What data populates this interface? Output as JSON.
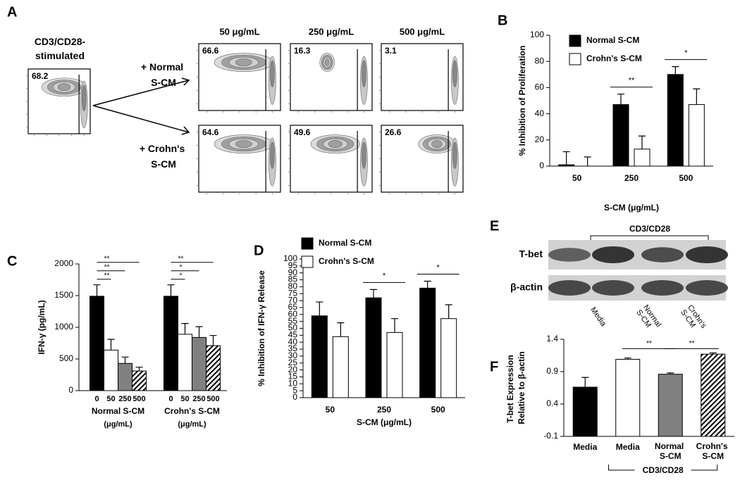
{
  "flow": {
    "label": "A",
    "control_title": "CD3/CD28-stimulated",
    "control_value": 68.2,
    "columns": [
      "50 μg/mL",
      "250 μg/mL",
      "500 μg/mL"
    ],
    "rows": [
      {
        "name": "+ Normal S-CM",
        "values": [
          66.6,
          16.3,
          3.1
        ]
      },
      {
        "name": "+ Crohn's S-CM",
        "values": [
          64.6,
          49.6,
          26.6
        ]
      }
    ]
  },
  "blot": {
    "label": "E",
    "treatment": "CD3/CD28",
    "bands": [
      "T-bet",
      "β-actin"
    ],
    "lanes": [
      null,
      "Media",
      "Normal S-CM",
      "Crohn's S-CM"
    ]
  },
  "chart_data": [
    {
      "label": "B",
      "type": "bar",
      "categories": [
        "50",
        "250",
        "500"
      ],
      "xlabel": "S-CM (μg/mL)",
      "ylabel": "% Inhibition of Proliferation",
      "ylim": [
        0,
        100
      ],
      "yticks": [
        0,
        20,
        40,
        60,
        80,
        100
      ],
      "legend": "top-left",
      "series": [
        {
          "name": "Normal S-CM",
          "color": "#000000",
          "values": [
            1,
            47,
            70
          ],
          "errors": [
            10,
            8,
            6
          ]
        },
        {
          "name": "Crohn's S-CM",
          "color": "#ffffff",
          "values": [
            0,
            13,
            47
          ],
          "errors": [
            7,
            10,
            12
          ]
        }
      ],
      "significance": [
        {
          "category": 1,
          "label": "**"
        },
        {
          "category": 2,
          "label": "*"
        }
      ]
    },
    {
      "label": "C",
      "type": "bar",
      "ylabel": "IFN-γ (pg/mL)",
      "ylim": [
        0,
        2000
      ],
      "yticks": [
        0,
        500,
        1000,
        1500,
        2000
      ],
      "colors": [
        "#000000",
        "#ffffff",
        "#808080",
        "hatch"
      ],
      "groups": [
        {
          "name": "Normal S-CM",
          "unit": "(μg/mL)",
          "categories": [
            "0",
            "50",
            "250",
            "500"
          ],
          "values": [
            1490,
            640,
            430,
            310
          ],
          "errors": [
            180,
            170,
            100,
            60
          ],
          "significance": [
            {
              "from": 0,
              "to": 1,
              "label": "**"
            },
            {
              "from": 0,
              "to": 2,
              "label": "**"
            },
            {
              "from": 0,
              "to": 3,
              "label": "**"
            }
          ]
        },
        {
          "name": "Crohn's S-CM",
          "unit": "(μg/mL)",
          "categories": [
            "0",
            "50",
            "250",
            "500"
          ],
          "values": [
            1490,
            890,
            840,
            710
          ],
          "errors": [
            180,
            170,
            170,
            160
          ],
          "significance": [
            {
              "from": 0,
              "to": 1,
              "label": "*"
            },
            {
              "from": 0,
              "to": 2,
              "label": "*"
            },
            {
              "from": 0,
              "to": 3,
              "label": "**"
            }
          ]
        }
      ]
    },
    {
      "label": "D",
      "type": "bar",
      "categories": [
        "50",
        "250",
        "500"
      ],
      "xlabel": "S-CM (μg/mL)",
      "ylabel": "% Inhibition of IFN-γ Release",
      "ylim": [
        0,
        100
      ],
      "yticks": [
        0,
        5,
        10,
        15,
        20,
        25,
        30,
        35,
        40,
        45,
        50,
        55,
        60,
        65,
        70,
        75,
        80,
        85,
        90,
        95,
        100
      ],
      "legend": "top-left",
      "series": [
        {
          "name": "Normal S-CM",
          "color": "#000000",
          "values": [
            59,
            72,
            79
          ],
          "errors": [
            10,
            6,
            5
          ]
        },
        {
          "name": "Crohn's S-CM",
          "color": "#ffffff",
          "values": [
            44,
            47,
            57
          ],
          "errors": [
            10,
            10,
            10
          ]
        }
      ],
      "significance": [
        {
          "category": 1,
          "label": "*"
        },
        {
          "category": 2,
          "label": "*"
        }
      ]
    },
    {
      "label": "F",
      "type": "bar",
      "categories": [
        "Media",
        "Media",
        "Normal S-CM",
        "Crohn's S-CM"
      ],
      "ylabel": "T-bet Expression Relative to β-actin",
      "values": [
        0.66,
        1.09,
        0.86,
        1.17
      ],
      "errors": [
        0.15,
        0.02,
        0.02,
        0.02
      ],
      "colors": [
        "#000000",
        "#ffffff",
        "#808080",
        "hatch"
      ],
      "ylim": [
        -0.1,
        1.4
      ],
      "yticks": [
        -0.1,
        0.4,
        0.9,
        1.4
      ],
      "significance": [
        {
          "from": 1,
          "to": 2,
          "label": "**"
        },
        {
          "from": 2,
          "to": 3,
          "label": "**"
        }
      ],
      "treatment": "CD3/CD28",
      "treatment_span": [
        1,
        3
      ]
    }
  ]
}
